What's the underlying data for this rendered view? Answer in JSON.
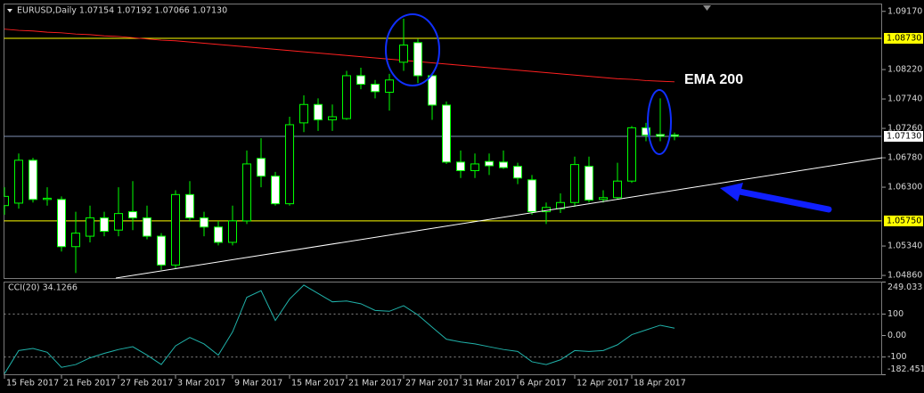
{
  "chart_data": [
    {
      "type": "candlestick",
      "title": "EURUSD,Daily 1.07154 1.07192 1.07066 1.07130",
      "categories": [
        "15 Feb 2017",
        null,
        null,
        null,
        "21 Feb 2017",
        null,
        null,
        null,
        "27 Feb 2017",
        null,
        null,
        null,
        "3 Mar 2017",
        null,
        null,
        null,
        "9 Mar 2017",
        null,
        null,
        null,
        "15 Mar 2017",
        null,
        null,
        null,
        "21 Mar 2017",
        null,
        null,
        null,
        "27 Mar 2017",
        null,
        null,
        null,
        "31 Mar 2017",
        null,
        null,
        null,
        "6 Apr 2017",
        null,
        null,
        null,
        "12 Apr 2017",
        null,
        null,
        null,
        "18 Apr 2017",
        null,
        null,
        null
      ],
      "open": [
        1.06,
        1.0604,
        1.0674,
        1.061,
        1.061,
        1.0533,
        1.055,
        1.058,
        1.056,
        1.059,
        1.058,
        1.055,
        1.0503,
        1.0618,
        1.058,
        1.0565,
        1.054,
        1.0575,
        1.0677,
        1.0648,
        1.0603,
        1.0735,
        1.0765,
        1.074,
        1.0742,
        1.0812,
        1.0798,
        1.0785,
        1.0834,
        1.0866,
        1.0812,
        1.0764,
        1.0671,
        1.0657,
        1.0672,
        1.0671,
        1.0664,
        1.0642,
        1.059,
        1.0595,
        1.0605,
        1.0664,
        1.061,
        1.0613,
        1.064,
        1.0727,
        1.0716,
        1.07154
      ],
      "high": [
        1.063,
        1.0685,
        1.0678,
        1.063,
        1.0615,
        1.059,
        1.06,
        1.059,
        1.063,
        1.064,
        1.06,
        1.0555,
        1.0625,
        1.064,
        1.059,
        1.0575,
        1.06,
        1.069,
        1.071,
        1.0655,
        1.0745,
        1.078,
        1.0775,
        1.0765,
        1.082,
        1.0825,
        1.0805,
        1.0815,
        1.0905,
        1.0872,
        1.0815,
        1.077,
        1.069,
        1.0685,
        1.0685,
        1.069,
        1.067,
        1.065,
        1.0605,
        1.062,
        1.068,
        1.068,
        1.0625,
        1.067,
        1.073,
        1.0735,
        1.0775,
        1.07192
      ],
      "low": [
        1.0585,
        1.0595,
        1.0605,
        1.06,
        1.0525,
        1.049,
        1.054,
        1.055,
        1.055,
        1.056,
        1.0545,
        1.0495,
        1.0497,
        1.0575,
        1.055,
        1.0535,
        1.0535,
        1.057,
        1.063,
        1.06,
        1.06,
        1.072,
        1.0722,
        1.0722,
        1.074,
        1.079,
        1.0775,
        1.0755,
        1.082,
        1.08,
        1.074,
        1.0668,
        1.0645,
        1.0645,
        1.065,
        1.066,
        1.0635,
        1.0585,
        1.057,
        1.0588,
        1.0598,
        1.0605,
        1.0605,
        1.061,
        1.0637,
        1.0705,
        1.0705,
        1.07066
      ],
      "close": [
        1.0615,
        1.0674,
        1.061,
        1.0612,
        1.0533,
        1.0555,
        1.058,
        1.0558,
        1.0587,
        1.058,
        1.055,
        1.0503,
        1.0618,
        1.058,
        1.0565,
        1.054,
        1.0575,
        1.0668,
        1.0648,
        1.0603,
        1.0732,
        1.0765,
        1.074,
        1.0745,
        1.0812,
        1.0798,
        1.0786,
        1.0805,
        1.0862,
        1.0812,
        1.0764,
        1.0671,
        1.0657,
        1.0668,
        1.0665,
        1.0662,
        1.0645,
        1.059,
        1.0597,
        1.0605,
        1.0667,
        1.0609,
        1.0613,
        1.064,
        1.0727,
        1.0715,
        1.0713,
        1.0713
      ],
      "colors": {
        "bull_body": "#000000",
        "bear_body": "#ffffff",
        "wick": "#00ff00"
      },
      "ylim": [
        1.0481,
        1.0929
      ],
      "yticks": [
        {
          "value": 1.0917,
          "label": "1.09170"
        },
        {
          "value": 1.0822,
          "label": "1.08220"
        },
        {
          "value": 1.0774,
          "label": "1.07740"
        },
        {
          "value": 1.0726,
          "label": "1.07260"
        },
        {
          "value": 1.0678,
          "label": "1.06780"
        },
        {
          "value": 1.063,
          "label": "1.06300"
        },
        {
          "value": 1.0534,
          "label": "1.05340"
        },
        {
          "value": 1.0486,
          "label": "1.04860"
        }
      ],
      "levels": [
        {
          "value": 1.0873,
          "label": "1.08730",
          "color": "#ffff00"
        },
        {
          "value": 1.0575,
          "label": "1.05750",
          "color": "#ffff00"
        },
        {
          "value": 1.0713,
          "label": "1.07130",
          "color": "#ffffff"
        }
      ],
      "ema": {
        "name": "EMA 200",
        "color": "#ff2020",
        "values": [
          1.0888,
          1.0886,
          1.0885,
          1.0883,
          1.0882,
          1.088,
          1.0879,
          1.0877,
          1.0876,
          1.0874,
          1.0872,
          1.087,
          1.0869,
          1.0867,
          1.0865,
          1.0863,
          1.0861,
          1.0859,
          1.0857,
          1.0855,
          1.0853,
          1.0851,
          1.0849,
          1.0847,
          1.0845,
          1.0843,
          1.0841,
          1.0839,
          1.0837,
          1.0835,
          1.0833,
          1.0831,
          1.0829,
          1.0827,
          1.0825,
          1.0823,
          1.0821,
          1.0819,
          1.0817,
          1.0815,
          1.0813,
          1.0811,
          1.0809,
          1.0807,
          1.0806,
          1.0804,
          1.0803,
          1.0802
        ]
      }
    },
    {
      "type": "line",
      "title": "CCI(20) 34.1266",
      "values": [
        -178,
        -70,
        -60,
        -78,
        -148,
        -135,
        -104,
        -83,
        -65,
        -52,
        -91,
        -135,
        -48,
        -9,
        -39,
        -91,
        17,
        178,
        209,
        70,
        170,
        235,
        196,
        157,
        161,
        148,
        117,
        113,
        139,
        96,
        39,
        -17,
        -30,
        -39,
        -52,
        -65,
        -74,
        -122,
        -135,
        -113,
        -70,
        -74,
        -70,
        -43,
        4,
        26,
        48,
        34.1266
      ],
      "color": "#20b2aa",
      "ylim": [
        -182.4514,
        249.033
      ],
      "yticks": [
        249.033,
        100,
        {
          "value": 0,
          "label": "0.00"
        },
        -100,
        -182.4514
      ],
      "levels": [
        100,
        -100
      ]
    }
  ]
}
